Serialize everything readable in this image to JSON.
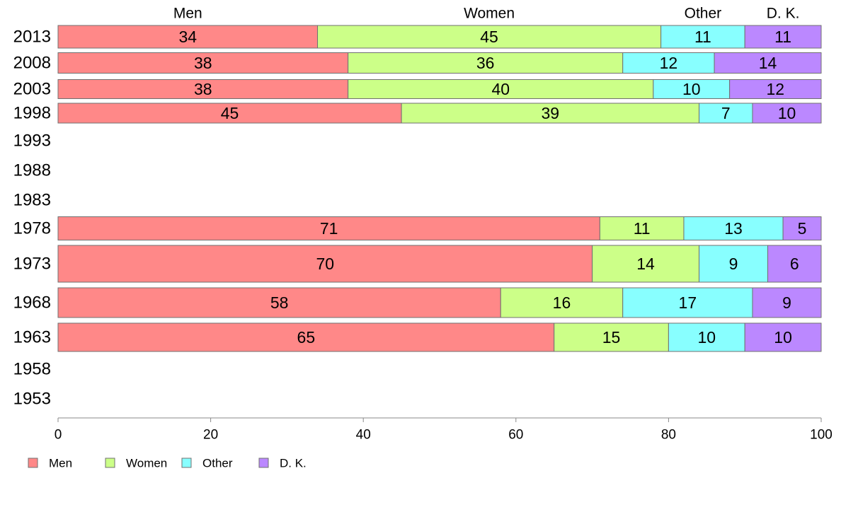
{
  "chart_data": {
    "type": "bar",
    "orientation": "horizontal",
    "stacked": true,
    "title": "",
    "xlabel": "",
    "ylabel": "",
    "xlim": [
      0,
      100
    ],
    "x_ticks": [
      "0",
      "20",
      "40",
      "60",
      "80",
      "100"
    ],
    "grid": false,
    "legend_placement": "bottom-left",
    "categories": [
      "2013",
      "2008",
      "2003",
      "1998",
      "1993",
      "1988",
      "1983",
      "1978",
      "1973",
      "1968",
      "1963",
      "1958",
      "1953"
    ],
    "series": [
      {
        "name": "Men",
        "color": "#ff8888",
        "values": [
          34,
          38,
          38,
          45,
          null,
          null,
          null,
          71,
          70,
          58,
          65,
          null,
          null
        ]
      },
      {
        "name": "Women",
        "color": "#ccff88",
        "values": [
          45,
          36,
          40,
          39,
          null,
          null,
          null,
          11,
          14,
          16,
          15,
          null,
          null
        ]
      },
      {
        "name": "Other",
        "color": "#88ffff",
        "values": [
          11,
          12,
          10,
          7,
          null,
          null,
          null,
          13,
          9,
          17,
          10,
          null,
          null
        ]
      },
      {
        "name": "D. K.",
        "color": "#bb88ff",
        "values": [
          11,
          14,
          12,
          10,
          null,
          null,
          null,
          5,
          6,
          9,
          10,
          null,
          null
        ]
      }
    ],
    "data_labels": [
      [
        "34",
        "45",
        "11",
        "11"
      ],
      [
        "38",
        "36",
        "12",
        "14"
      ],
      [
        "38",
        "40",
        "10",
        "12"
      ],
      [
        "45",
        "39",
        "7",
        "10"
      ],
      null,
      null,
      null,
      [
        "71",
        "11",
        "13",
        "5"
      ],
      [
        "70",
        "14",
        "9",
        "6"
      ],
      [
        "58",
        "16",
        "17",
        "9"
      ],
      [
        "65",
        "15",
        "10",
        "10"
      ],
      null,
      null
    ],
    "top_labels": [
      "Men",
      "Women",
      "Other",
      "D. K."
    ]
  }
}
